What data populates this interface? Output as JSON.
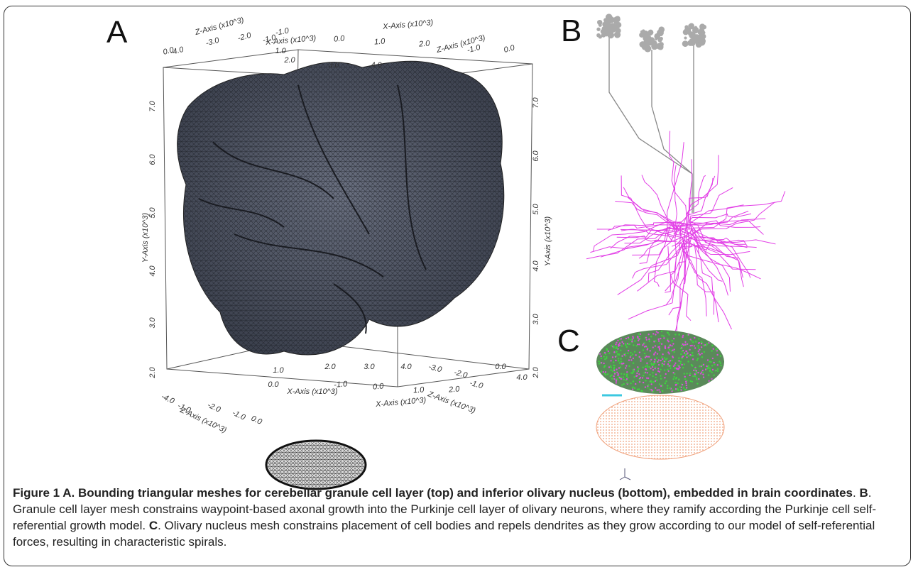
{
  "panels": {
    "a": "A",
    "b": "B",
    "c": "C"
  },
  "plot_a": {
    "labels": [
      "Y-Axis (x10^3)",
      "7.0",
      "6.0",
      "5.0",
      "4.0",
      "3.0",
      "2.0",
      "Y-Axis (x10^3)",
      "7.0",
      "6.0",
      "5.0",
      "4.0",
      "3.0",
      "2.0",
      "X-Axis (x10^3)",
      "-1.0",
      "0.0",
      "1.0",
      "2.0",
      "X-Axis (x10^3)",
      "1.0",
      "2.0",
      "3.0",
      "4.0",
      "Z-Axis (x10^3)",
      "-4.0",
      "-3.0",
      "-2.0",
      "-1.0",
      "0.0",
      "Z-Axis (x10^3)",
      "-1.0",
      "0.0",
      "X-Axis (x10^3)",
      "1.0",
      "0.0",
      "2.0",
      "3.0",
      "4.0",
      "-3.0",
      "-2.0",
      "-1.0",
      "0.0",
      "4.0",
      "Z-Axis (x10^3)",
      "-1.0",
      "0.0",
      "1.0",
      "2.0",
      "X-Axis (x10^3)",
      "-4.0",
      "-1.0",
      "-2.0",
      "Z-Axis (x10^3)",
      "-1.0",
      "0.0"
    ]
  },
  "caption": [
    {
      "text": "Figure 1 A. Bounding triangular meshes for cerebellar granule cell layer (top) and inferior olivary nucleus (bottom), embedded in brain coordinates",
      "bold": true
    },
    {
      "text": ". ",
      "bold": false
    },
    {
      "text": "B",
      "bold": true
    },
    {
      "text": ". Granule cell layer mesh constrains waypoint-based axonal growth into the Purkinje cell layer of olivary neurons, where they ramify according the Purkinje cell self-referential growth model. ",
      "bold": false
    },
    {
      "text": "C",
      "bold": true
    },
    {
      "text": ". Olivary nucleus mesh constrains placement of cell bodies and repels dendrites as they grow according to our model of self-referential forces, resulting in characteristic spirals.",
      "bold": false
    }
  ]
}
